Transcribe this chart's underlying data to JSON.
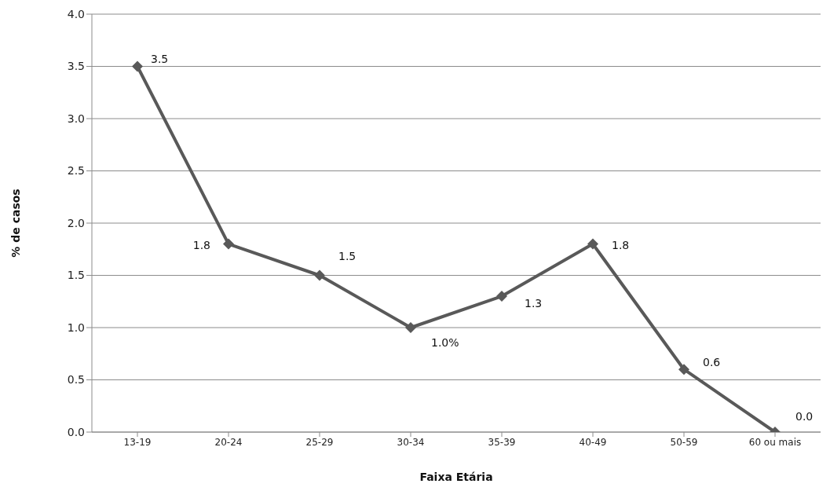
{
  "chart_data": {
    "type": "line",
    "xlabel": "Faixa Etária",
    "ylabel": "% de casos",
    "categories": [
      "13-19",
      "20-24",
      "25-29",
      "30-34",
      "35-39",
      "40-49",
      "50-59",
      "60 ou mais"
    ],
    "series": [
      {
        "color": "#595959",
        "values": [
          3.5,
          1.8,
          1.5,
          1.0,
          1.3,
          1.8,
          0.6,
          0.0
        ],
        "value_labels": [
          "3.5",
          "1.8",
          "1.5",
          "1.0%",
          "1.3",
          "1.8",
          "0.6",
          "0.0"
        ]
      }
    ],
    "ylim": [
      0,
      4
    ],
    "yticks": [
      {
        "value": 0,
        "label": "0.0"
      },
      {
        "value": 0.5,
        "label": "0.5"
      },
      {
        "value": 1,
        "label": "1.0"
      },
      {
        "value": 1.5,
        "label": "1.5"
      },
      {
        "value": 2,
        "label": "2.0"
      },
      {
        "value": 2.5,
        "label": "2.5"
      },
      {
        "value": 3,
        "label": "3.0"
      },
      {
        "value": 3.5,
        "label": "3.5"
      },
      {
        "value": 4,
        "label": "4.0"
      }
    ],
    "grid": "y",
    "marker": "diamond",
    "line_style": "solid"
  }
}
